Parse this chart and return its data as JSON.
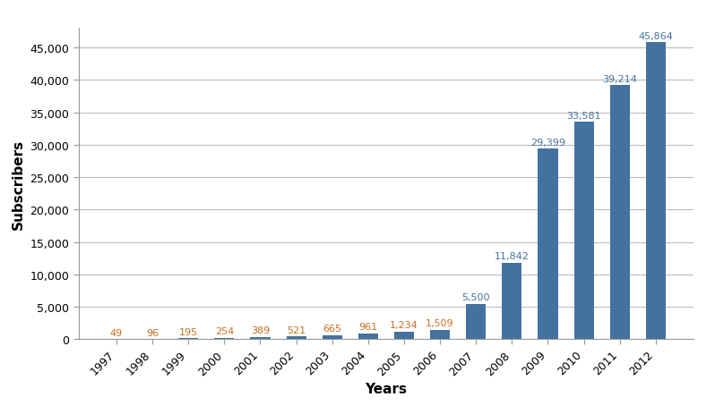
{
  "years": [
    "1997",
    "1998",
    "1999",
    "2000",
    "2001",
    "2002",
    "2003",
    "2004",
    "2005",
    "2006",
    "2007",
    "2008",
    "2009",
    "2010",
    "2011",
    "2012"
  ],
  "values": [
    49,
    96,
    195,
    254,
    389,
    521,
    665,
    961,
    1234,
    1509,
    5500,
    11842,
    29399,
    33581,
    39214,
    45864
  ],
  "bar_color": "#4472a0",
  "xlabel": "Years",
  "ylabel": "Subscribers",
  "ylim": [
    0,
    48000
  ],
  "yticks": [
    0,
    5000,
    10000,
    15000,
    20000,
    25000,
    30000,
    35000,
    40000,
    45000
  ],
  "label_color_small": "#c87020",
  "label_color_large": "#4472a0",
  "small_threshold": 2000,
  "background_color": "#ffffff",
  "grid_color": "#bbbbbb",
  "axis_label_fontsize": 11,
  "tick_fontsize": 9,
  "bar_label_fontsize": 8
}
